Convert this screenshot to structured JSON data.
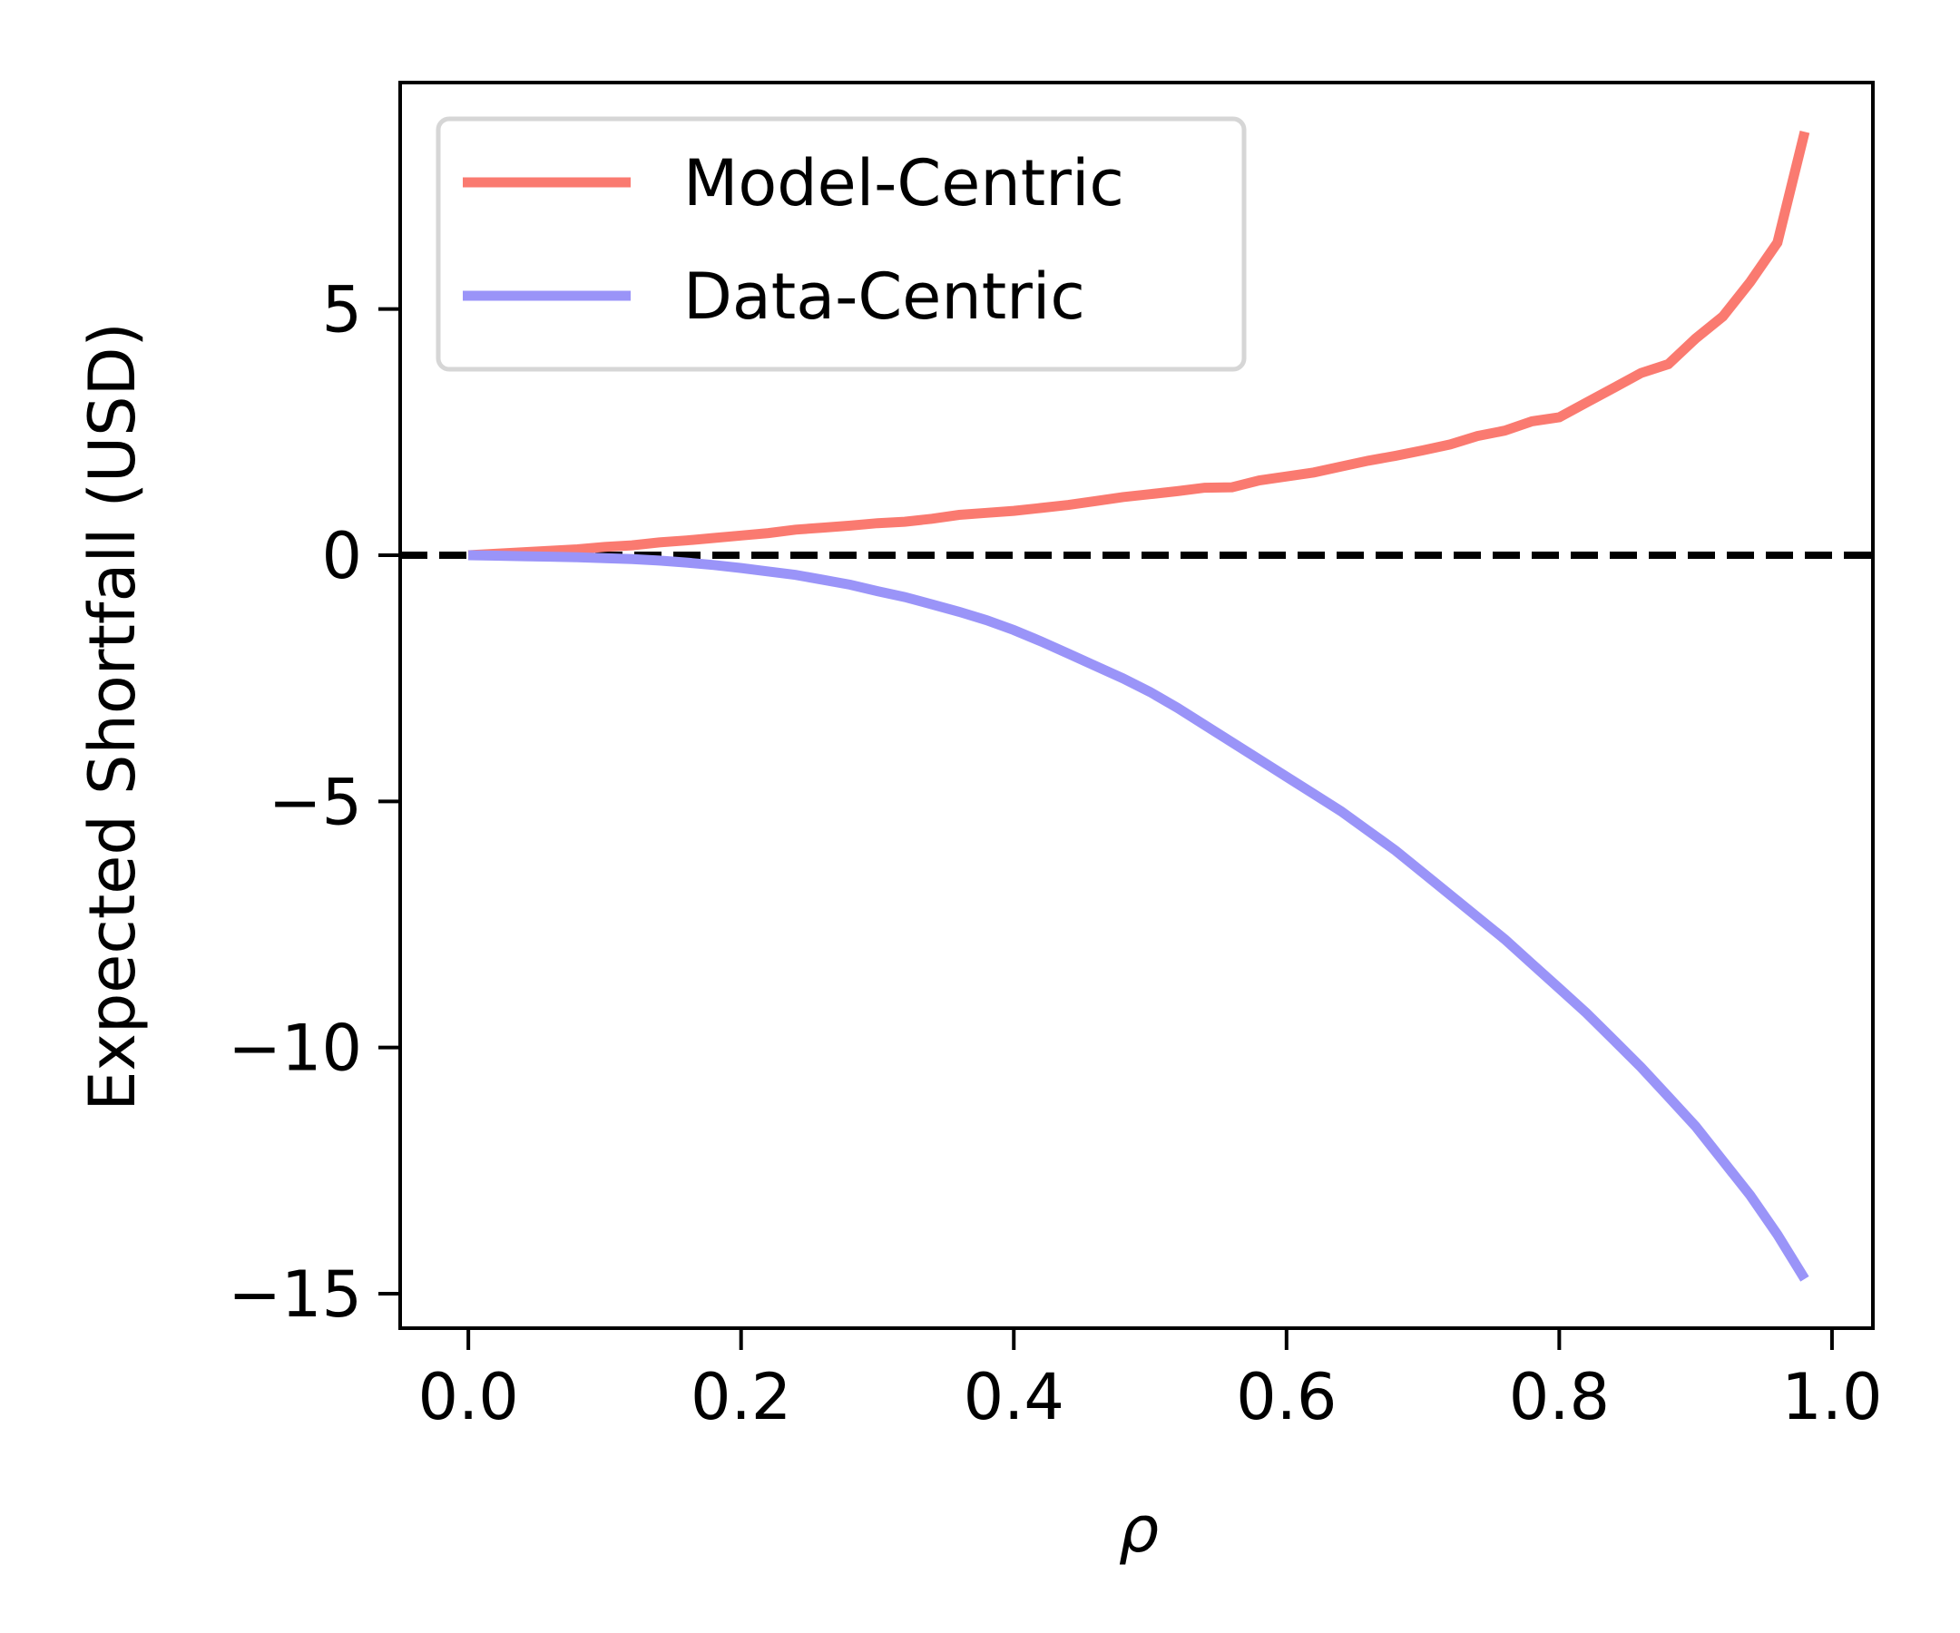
{
  "chart_data": {
    "type": "line",
    "title": "",
    "xlabel": "ρ",
    "ylabel": "Expected Shortfall (USD)",
    "xlim": [
      -0.05,
      1.03
    ],
    "ylim": [
      -15.7,
      9.6
    ],
    "x_ticks": [
      0.0,
      0.2,
      0.4,
      0.6,
      0.8,
      1.0
    ],
    "x_tick_labels": [
      "0.0",
      "0.2",
      "0.4",
      "0.6",
      "0.8",
      "1.0"
    ],
    "y_ticks": [
      5,
      0,
      -5,
      -10,
      -15
    ],
    "y_tick_labels": [
      "5",
      "0",
      "−5",
      "−10",
      "−15"
    ],
    "grid": false,
    "legend_position": "upper-left",
    "reference_line": {
      "y": 0,
      "style": "dashed",
      "color": "#000000"
    },
    "series": [
      {
        "name": "Model-Centric",
        "color": "#fa7a70",
        "points": [
          [
            0.0,
            0.0
          ],
          [
            0.02,
            0.03
          ],
          [
            0.04,
            0.06
          ],
          [
            0.06,
            0.09
          ],
          [
            0.08,
            0.12
          ],
          [
            0.1,
            0.17
          ],
          [
            0.12,
            0.2
          ],
          [
            0.14,
            0.26
          ],
          [
            0.16,
            0.3
          ],
          [
            0.18,
            0.35
          ],
          [
            0.2,
            0.4
          ],
          [
            0.22,
            0.45
          ],
          [
            0.24,
            0.52
          ],
          [
            0.26,
            0.56
          ],
          [
            0.28,
            0.6
          ],
          [
            0.3,
            0.65
          ],
          [
            0.32,
            0.68
          ],
          [
            0.34,
            0.74
          ],
          [
            0.36,
            0.82
          ],
          [
            0.38,
            0.86
          ],
          [
            0.4,
            0.9
          ],
          [
            0.42,
            0.96
          ],
          [
            0.44,
            1.02
          ],
          [
            0.46,
            1.1
          ],
          [
            0.48,
            1.18
          ],
          [
            0.5,
            1.24
          ],
          [
            0.52,
            1.3
          ],
          [
            0.54,
            1.37
          ],
          [
            0.56,
            1.38
          ],
          [
            0.58,
            1.52
          ],
          [
            0.6,
            1.6
          ],
          [
            0.62,
            1.68
          ],
          [
            0.64,
            1.8
          ],
          [
            0.66,
            1.92
          ],
          [
            0.68,
            2.02
          ],
          [
            0.7,
            2.13
          ],
          [
            0.72,
            2.25
          ],
          [
            0.74,
            2.42
          ],
          [
            0.76,
            2.53
          ],
          [
            0.78,
            2.72
          ],
          [
            0.8,
            2.8
          ],
          [
            0.82,
            3.1
          ],
          [
            0.84,
            3.4
          ],
          [
            0.86,
            3.7
          ],
          [
            0.88,
            3.88
          ],
          [
            0.9,
            4.4
          ],
          [
            0.92,
            4.85
          ],
          [
            0.94,
            5.55
          ],
          [
            0.96,
            6.35
          ],
          [
            0.98,
            8.6
          ]
        ]
      },
      {
        "name": "Data-Centric",
        "color": "#9a94f8",
        "points": [
          [
            0.0,
            0.0
          ],
          [
            0.02,
            -0.01
          ],
          [
            0.04,
            -0.02
          ],
          [
            0.06,
            -0.03
          ],
          [
            0.08,
            -0.04
          ],
          [
            0.1,
            -0.06
          ],
          [
            0.12,
            -0.08
          ],
          [
            0.14,
            -0.11
          ],
          [
            0.16,
            -0.15
          ],
          [
            0.18,
            -0.2
          ],
          [
            0.2,
            -0.26
          ],
          [
            0.22,
            -0.33
          ],
          [
            0.24,
            -0.4
          ],
          [
            0.26,
            -0.5
          ],
          [
            0.28,
            -0.6
          ],
          [
            0.3,
            -0.73
          ],
          [
            0.32,
            -0.85
          ],
          [
            0.34,
            -1.0
          ],
          [
            0.36,
            -1.15
          ],
          [
            0.38,
            -1.32
          ],
          [
            0.4,
            -1.52
          ],
          [
            0.42,
            -1.75
          ],
          [
            0.44,
            -2.0
          ],
          [
            0.46,
            -2.25
          ],
          [
            0.48,
            -2.5
          ],
          [
            0.5,
            -2.78
          ],
          [
            0.52,
            -3.1
          ],
          [
            0.54,
            -3.45
          ],
          [
            0.56,
            -3.8
          ],
          [
            0.58,
            -4.15
          ],
          [
            0.6,
            -4.5
          ],
          [
            0.62,
            -4.85
          ],
          [
            0.64,
            -5.2
          ],
          [
            0.66,
            -5.6
          ],
          [
            0.68,
            -6.0
          ],
          [
            0.7,
            -6.45
          ],
          [
            0.72,
            -6.9
          ],
          [
            0.74,
            -7.35
          ],
          [
            0.76,
            -7.8
          ],
          [
            0.78,
            -8.3
          ],
          [
            0.8,
            -8.8
          ],
          [
            0.82,
            -9.3
          ],
          [
            0.84,
            -9.85
          ],
          [
            0.86,
            -10.4
          ],
          [
            0.88,
            -11.0
          ],
          [
            0.9,
            -11.6
          ],
          [
            0.92,
            -12.3
          ],
          [
            0.94,
            -13.0
          ],
          [
            0.96,
            -13.8
          ],
          [
            0.98,
            -14.7
          ]
        ]
      }
    ]
  }
}
